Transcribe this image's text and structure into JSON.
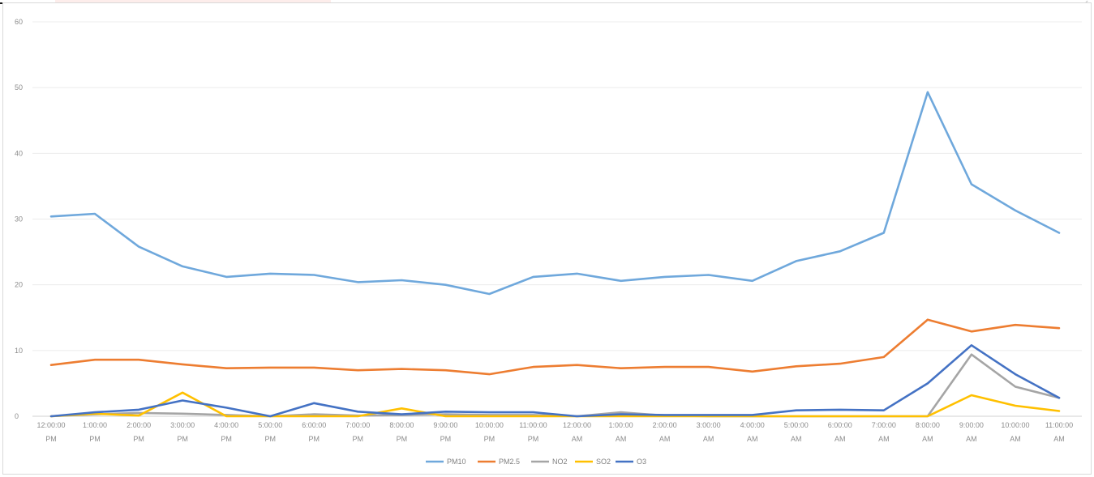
{
  "chart_data": {
    "type": "line",
    "title": "",
    "xlabel": "",
    "ylabel": "",
    "ylim": [
      0,
      60
    ],
    "yticks": [
      0,
      10,
      20,
      30,
      40,
      50,
      60
    ],
    "grid": true,
    "legend_position": "bottom",
    "categories": [
      [
        "12:00:00",
        "PM"
      ],
      [
        "1:00:00",
        "PM"
      ],
      [
        "2:00:00",
        "PM"
      ],
      [
        "3:00:00",
        "PM"
      ],
      [
        "4:00:00",
        "PM"
      ],
      [
        "5:00:00",
        "PM"
      ],
      [
        "6:00:00",
        "PM"
      ],
      [
        "7:00:00",
        "PM"
      ],
      [
        "8:00:00",
        "PM"
      ],
      [
        "9:00:00",
        "PM"
      ],
      [
        "10:00:00",
        "PM"
      ],
      [
        "11:00:00",
        "PM"
      ],
      [
        "12:00:00",
        "AM"
      ],
      [
        "1:00:00",
        "AM"
      ],
      [
        "2:00:00",
        "AM"
      ],
      [
        "3:00:00",
        "AM"
      ],
      [
        "4:00:00",
        "AM"
      ],
      [
        "5:00:00",
        "AM"
      ],
      [
        "6:00:00",
        "AM"
      ],
      [
        "7:00:00",
        "AM"
      ],
      [
        "8:00:00",
        "AM"
      ],
      [
        "9:00:00",
        "AM"
      ],
      [
        "10:00:00",
        "AM"
      ],
      [
        "11:00:00",
        "AM"
      ]
    ],
    "series": [
      {
        "name": "PM10",
        "color": "#6fa8dc",
        "values": [
          30.4,
          30.8,
          25.8,
          22.8,
          21.2,
          21.7,
          21.5,
          20.4,
          20.7,
          20.0,
          18.6,
          21.2,
          21.7,
          20.6,
          21.2,
          21.5,
          20.6,
          23.6,
          25.1,
          27.9,
          49.3,
          35.3,
          31.3,
          27.9
        ]
      },
      {
        "name": "PM2.5",
        "color": "#ed7d31",
        "values": [
          7.8,
          8.6,
          8.6,
          7.9,
          7.3,
          7.4,
          7.4,
          7.0,
          7.2,
          7.0,
          6.4,
          7.5,
          7.8,
          7.3,
          7.5,
          7.5,
          6.8,
          7.6,
          8.0,
          9.0,
          14.7,
          12.9,
          13.9,
          13.4
        ]
      },
      {
        "name": "NO2",
        "color": "#a5a5a5",
        "values": [
          0,
          0.3,
          0.5,
          0.4,
          0.2,
          0,
          0.3,
          0.1,
          0.2,
          0.3,
          0.2,
          0.2,
          0,
          0.6,
          0.1,
          0,
          0,
          0,
          0,
          0,
          0,
          9.4,
          4.5,
          2.8
        ]
      },
      {
        "name": "SO2",
        "color": "#ffc000",
        "values": [
          0,
          0.4,
          0.1,
          3.6,
          0,
          0,
          0,
          0,
          1.2,
          0,
          0,
          0,
          0,
          0,
          0,
          0,
          0,
          0,
          0,
          0,
          0,
          3.2,
          1.6,
          0.8
        ]
      },
      {
        "name": "O3",
        "color": "#4472c4",
        "values": [
          0,
          0.6,
          1.0,
          2.4,
          1.3,
          0,
          2.0,
          0.7,
          0.3,
          0.7,
          0.6,
          0.6,
          0,
          0.3,
          0.2,
          0.2,
          0.2,
          0.9,
          1.0,
          0.9,
          5.0,
          10.8,
          6.4,
          2.8
        ]
      }
    ]
  }
}
